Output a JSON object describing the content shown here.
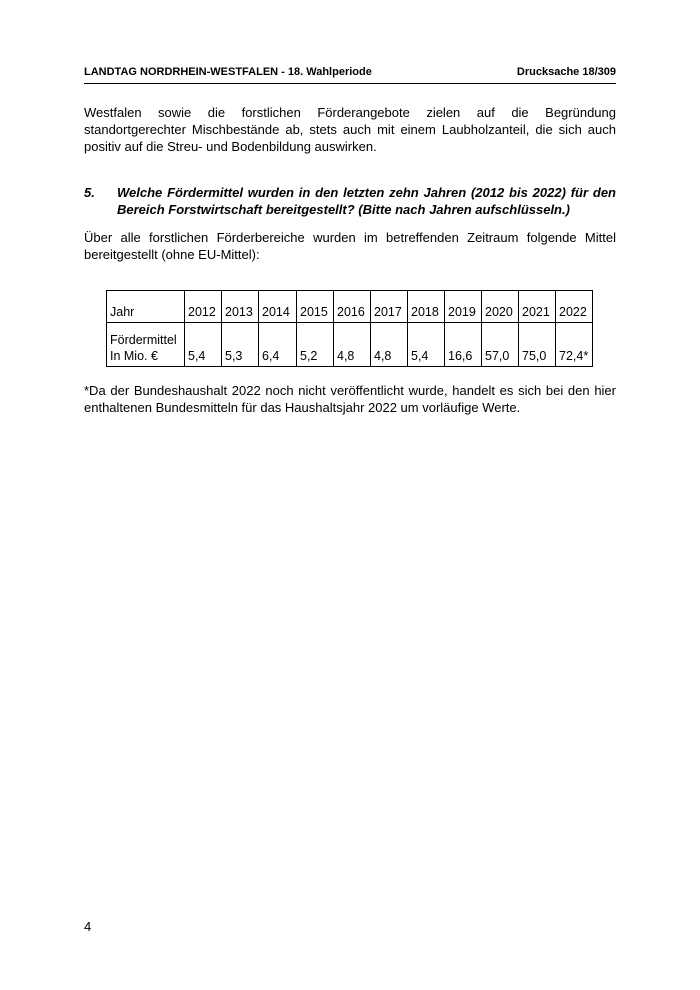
{
  "header": {
    "left": "LANDTAG NORDRHEIN-WESTFALEN - 18. Wahlperiode",
    "right": "Drucksache 18/309"
  },
  "paragraph": "Westfalen sowie die forstlichen Förderangebote zielen auf die Begründung standortgerechter Mischbestände ab, stets auch mit einem Laubholzanteil, die sich auch positiv auf die Streu- und Bodenbildung auswirken.",
  "question": {
    "number": "5.",
    "text": "Welche Fördermittel wurden in den letzten zehn Jahren (2012 bis 2022) für den Bereich Forstwirtschaft bereitgestellt? (Bitte nach Jahren aufschlüsseln.)"
  },
  "intro": "Über alle forstlichen Förderbereiche wurden im betreffenden Zeitraum folgende Mittel bereitgestellt (ohne EU-Mittel):",
  "table": {
    "rows": [
      [
        "Jahr",
        "2012",
        "2013",
        "2014",
        "2015",
        "2016",
        "2017",
        "2018",
        "2019",
        "2020",
        "2021",
        "2022"
      ],
      [
        "Fördermittel\nIn Mio. €",
        "5,4",
        "5,3",
        "6,4",
        "5,2",
        "4,8",
        "4,8",
        "5,4",
        "16,6",
        "57,0",
        "75,0",
        "72,4*"
      ]
    ]
  },
  "footnote": "*Da der Bundeshaushalt 2022 noch nicht veröffentlicht wurde, handelt es sich bei den hier enthaltenen Bundesmitteln für das Haushaltsjahr 2022 um vorläufige Werte.",
  "page_number": "4"
}
